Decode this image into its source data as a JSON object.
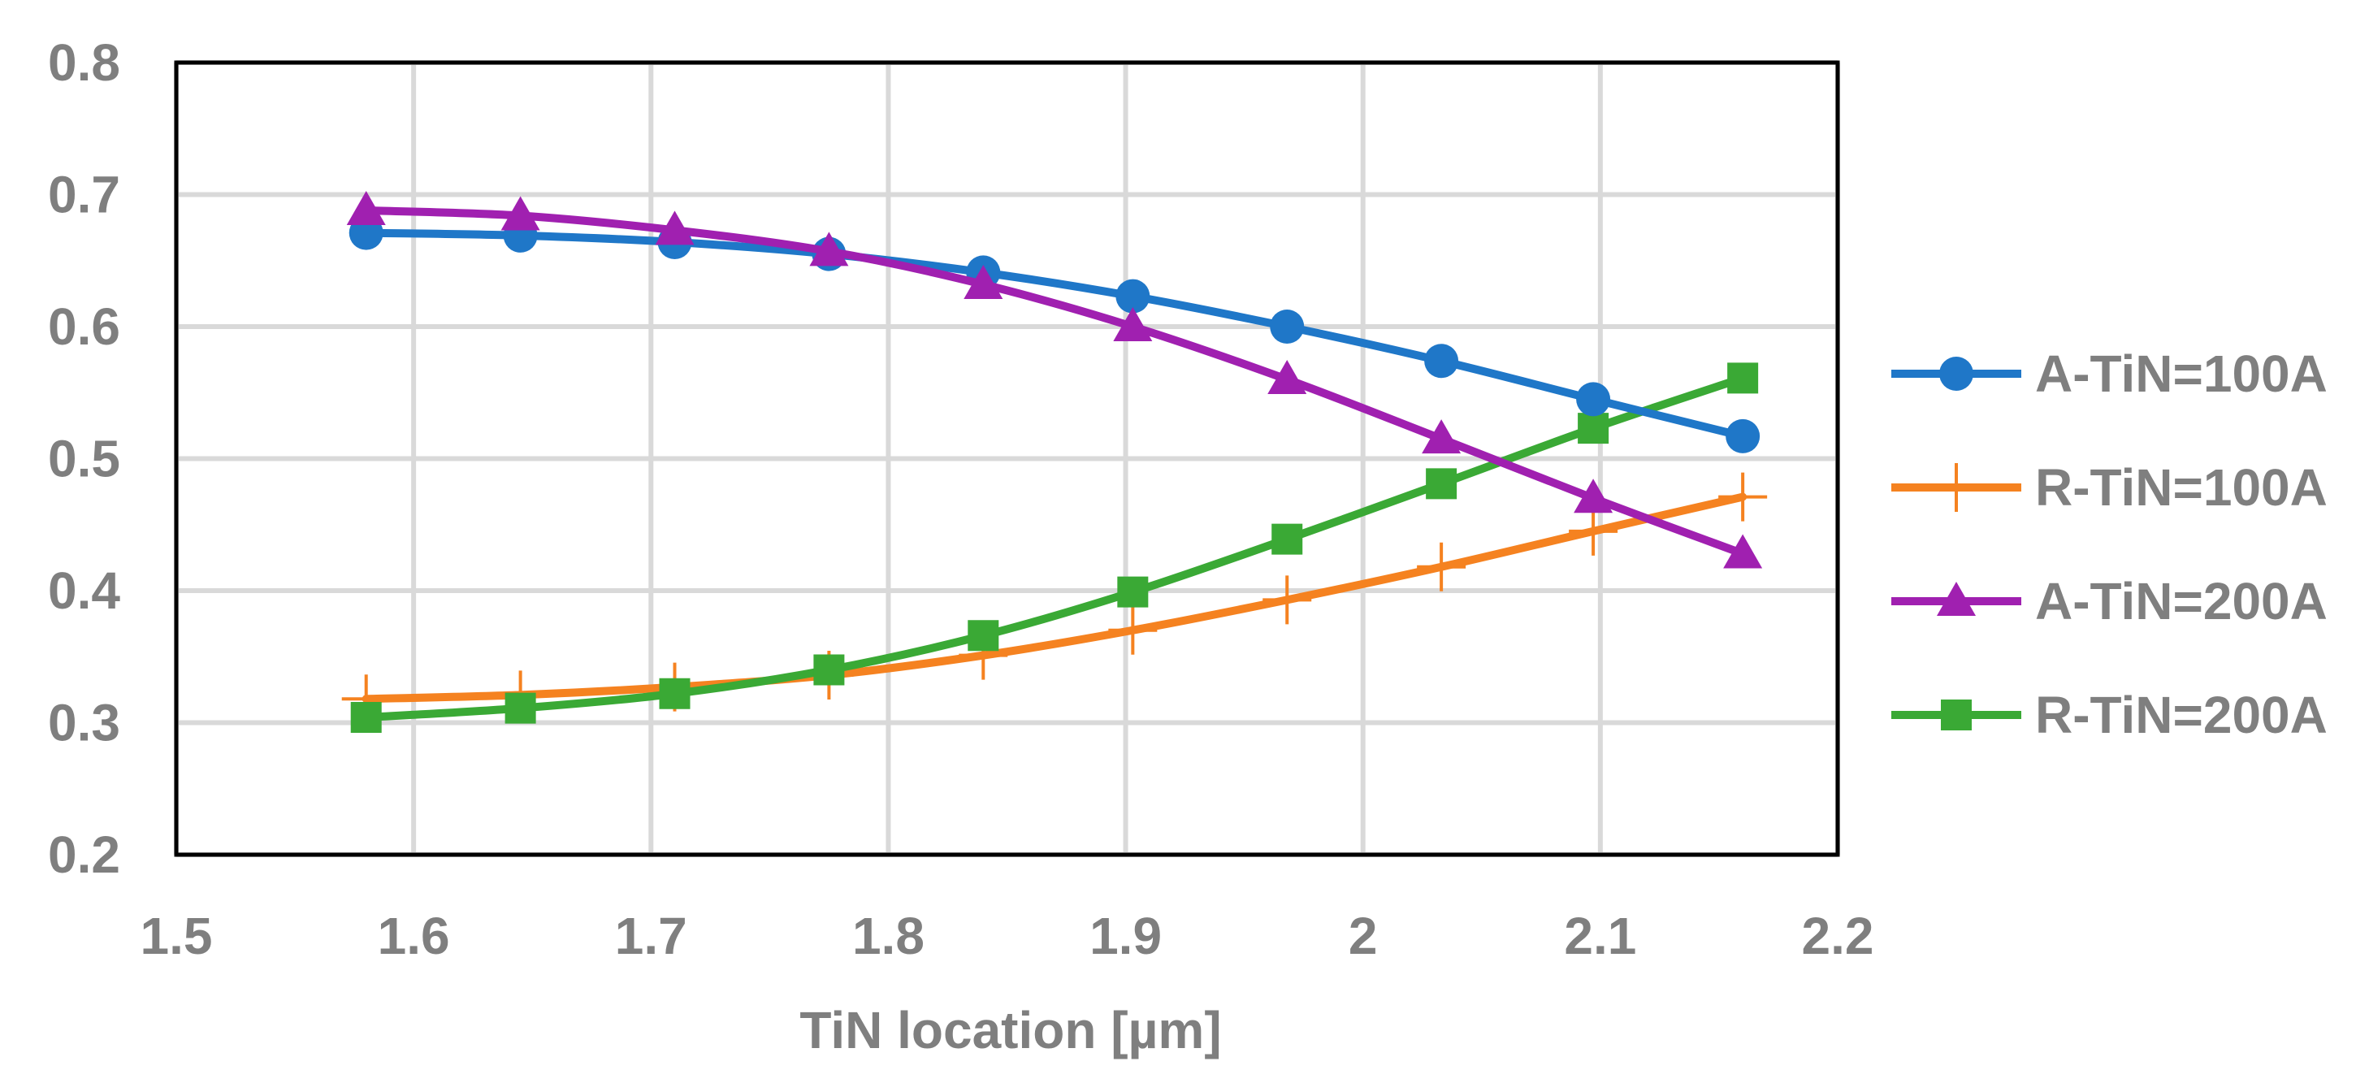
{
  "chart_data": {
    "type": "line",
    "title": "",
    "xlabel": "TiN location [µm]",
    "ylabel": "",
    "xlim": [
      1.5,
      2.2
    ],
    "ylim": [
      0.2,
      0.8
    ],
    "x_ticks": [
      "1.5",
      "1.6",
      "1.7",
      "1.8",
      "1.9",
      "2",
      "2.1",
      "2.2"
    ],
    "y_ticks": [
      "0.2",
      "0.3",
      "0.4",
      "0.5",
      "0.6",
      "0.7",
      "0.8"
    ],
    "grid": true,
    "legend_position": "right",
    "x": [
      1.58,
      1.645,
      1.71,
      1.775,
      1.84,
      1.903,
      1.968,
      2.033,
      2.097,
      2.16
    ],
    "series": [
      {
        "name": "A-TiN=100A",
        "color": "#1f77c8",
        "marker": "circle",
        "values": [
          0.671,
          0.669,
          0.664,
          0.655,
          0.641,
          0.623,
          0.6,
          0.574,
          0.545,
          0.517
        ]
      },
      {
        "name": "R-TiN=100A",
        "color": "#f58220",
        "marker": "plus",
        "values": [
          0.318,
          0.321,
          0.327,
          0.336,
          0.351,
          0.37,
          0.393,
          0.418,
          0.445,
          0.471
        ]
      },
      {
        "name": "A-TiN=200A",
        "color": "#a020b0",
        "marker": "triangle",
        "values": [
          0.688,
          0.684,
          0.673,
          0.657,
          0.632,
          0.6,
          0.56,
          0.515,
          0.47,
          0.428
        ]
      },
      {
        "name": "R-TiN=200A",
        "color": "#3aa935",
        "marker": "square",
        "values": [
          0.304,
          0.311,
          0.322,
          0.34,
          0.366,
          0.399,
          0.439,
          0.481,
          0.523,
          0.561
        ]
      }
    ]
  },
  "colors": {
    "grid": "#d9d9d9",
    "axis_text": "#7f7f7f",
    "frame": "#000000"
  }
}
